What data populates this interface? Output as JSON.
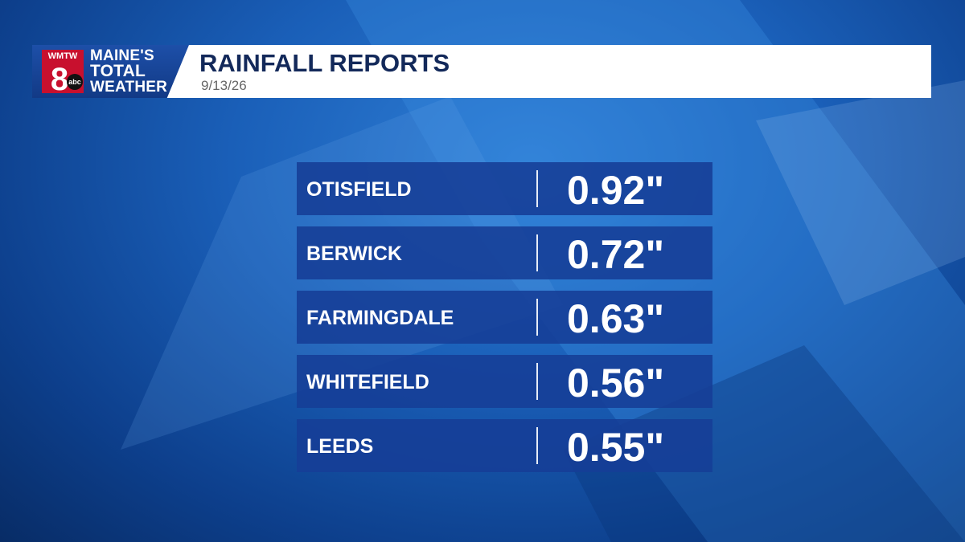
{
  "header": {
    "logo": {
      "call_letters": "WMTW",
      "channel": "8",
      "network": "abc",
      "lines": [
        "MAINE'S",
        "TOTAL",
        "WEATHER"
      ]
    },
    "title": "RAINFALL REPORTS",
    "date": "9/13/26"
  },
  "table": {
    "rows": [
      [
        "OTISFIELD",
        "0.92\""
      ],
      [
        "BERWICK",
        "0.72\""
      ],
      [
        "FARMINGDALE",
        "0.63\""
      ],
      [
        "WHITEFIELD",
        "0.56\""
      ],
      [
        "LEEDS",
        "0.55\""
      ]
    ]
  }
}
